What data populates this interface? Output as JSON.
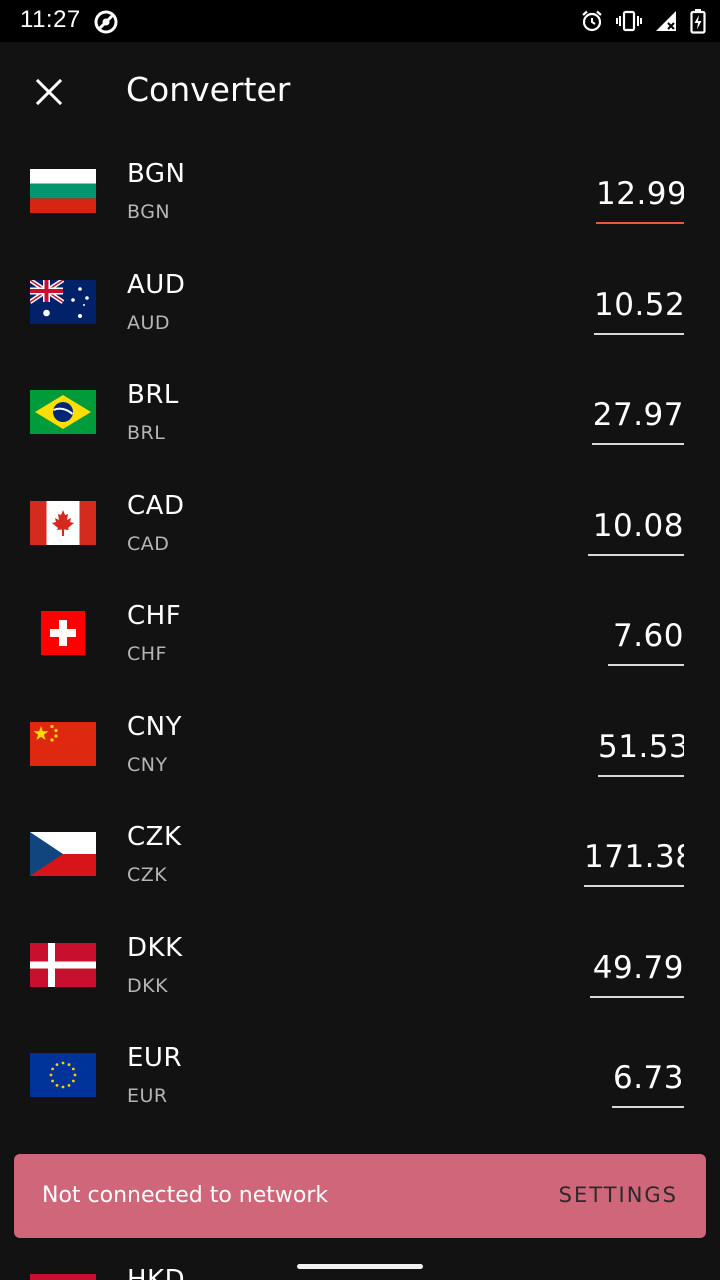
{
  "status_bar": {
    "time": "11:27"
  },
  "toolbar": {
    "title": "Converter"
  },
  "currencies": [
    {
      "code": "BGN",
      "subcode": "BGN",
      "amount": "12.99",
      "flag": "flag-bulgaria-icon"
    },
    {
      "code": "AUD",
      "subcode": "AUD",
      "amount": "10.52",
      "flag": "flag-australia-icon"
    },
    {
      "code": "BRL",
      "subcode": "BRL",
      "amount": "27.97",
      "flag": "flag-brazil-icon"
    },
    {
      "code": "CAD",
      "subcode": "CAD",
      "amount": "10.08",
      "flag": "flag-canada-icon"
    },
    {
      "code": "CHF",
      "subcode": "CHF",
      "amount": "7.60",
      "flag": "flag-switzerland-icon"
    },
    {
      "code": "CNY",
      "subcode": "CNY",
      "amount": "51.53",
      "flag": "flag-china-icon"
    },
    {
      "code": "CZK",
      "subcode": "CZK",
      "amount": "171.38",
      "flag": "flag-czech-icon"
    },
    {
      "code": "DKK",
      "subcode": "DKK",
      "amount": "49.79",
      "flag": "flag-denmark-icon"
    },
    {
      "code": "EUR",
      "subcode": "EUR",
      "amount": "6.73",
      "flag": "flag-eu-icon"
    }
  ],
  "peek": {
    "code": "HKD"
  },
  "snackbar": {
    "message": "Not connected to network",
    "action": "SETTINGS"
  },
  "colors": {
    "background": "#121212",
    "status_bar": "#000000",
    "snackbar": "#cf6679",
    "active_input": "#e75a3d"
  }
}
